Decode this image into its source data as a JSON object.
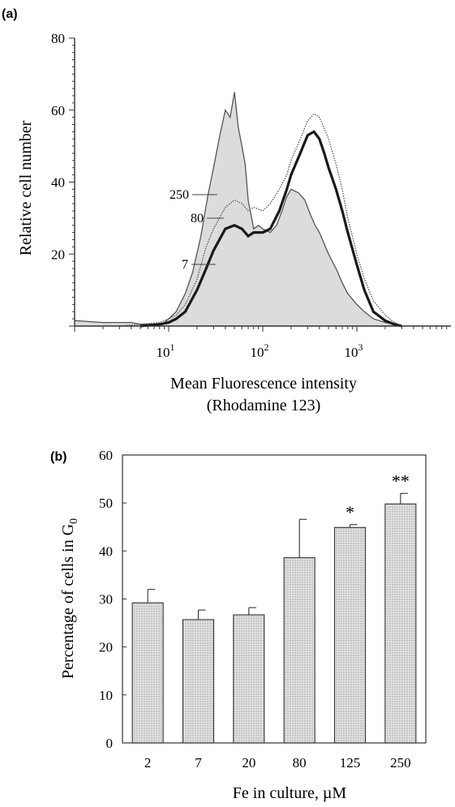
{
  "chart_data": [
    {
      "panel": "(a)",
      "type": "line",
      "xlabel": "Mean Fluorescence intensity",
      "xlabel2": "(Rhodamine 123)",
      "ylabel": "Relative cell number",
      "x_scale": "log",
      "xlim": [
        1,
        10000
      ],
      "ylim": [
        0,
        80
      ],
      "yticks": [
        "20",
        "40",
        "60",
        "80"
      ],
      "xticks": [
        {
          "value": 10,
          "base": "10",
          "exp": "1"
        },
        {
          "value": 100,
          "base": "10",
          "exp": "2"
        },
        {
          "value": 1000,
          "base": "10",
          "exp": "3"
        }
      ],
      "grid": false,
      "series": [
        {
          "name": "7",
          "style": "thin-filled",
          "x": [
            1,
            2,
            3,
            4,
            5,
            6,
            7,
            8,
            9,
            10,
            12,
            15,
            18,
            22,
            26,
            30,
            35,
            40,
            45,
            50,
            55,
            60,
            65,
            70,
            80,
            90,
            100,
            120,
            140,
            160,
            180,
            200,
            240,
            280,
            320,
            360,
            400,
            500,
            600,
            700,
            800,
            1000,
            1200,
            1500,
            2000,
            2500,
            3000
          ],
          "y": [
            1.5,
            1,
            1,
            1,
            0.5,
            0.5,
            0.5,
            0.5,
            1,
            2,
            4,
            9,
            15,
            25,
            36,
            44,
            53,
            60,
            58,
            65,
            55,
            50,
            45,
            35,
            27,
            28,
            27,
            26,
            28,
            32,
            36,
            38,
            37,
            35,
            31,
            28,
            26,
            20,
            16,
            12,
            9,
            6,
            4,
            2,
            1,
            0.5,
            0
          ]
        },
        {
          "name": "80",
          "style": "dotted",
          "x": [
            3,
            5,
            8,
            10,
            12,
            15,
            20,
            25,
            30,
            40,
            50,
            60,
            70,
            80,
            100,
            120,
            150,
            180,
            200,
            250,
            300,
            350,
            400,
            450,
            500,
            600,
            700,
            800,
            1000,
            1200,
            1500,
            2000,
            2500,
            3000
          ],
          "y": [
            0,
            0.5,
            1,
            2,
            3,
            6,
            13,
            22,
            27,
            33,
            35,
            34,
            32,
            33,
            32,
            34,
            38,
            42,
            46,
            52,
            57,
            59,
            58,
            55,
            52,
            45,
            38,
            30,
            20,
            13,
            7,
            3,
            1,
            0
          ]
        },
        {
          "name": "250",
          "style": "thick",
          "x": [
            5,
            8,
            10,
            12,
            15,
            20,
            25,
            30,
            40,
            50,
            60,
            70,
            80,
            100,
            120,
            150,
            180,
            200,
            250,
            300,
            350,
            400,
            450,
            500,
            600,
            700,
            800,
            1000,
            1200,
            1500,
            2000,
            2500,
            3000
          ],
          "y": [
            0,
            0.5,
            1,
            2,
            4,
            10,
            16,
            21,
            27,
            28,
            27,
            25,
            26,
            26,
            27,
            32,
            38,
            42,
            48,
            53,
            54,
            52,
            48,
            44,
            38,
            32,
            26,
            17,
            10,
            4,
            1.5,
            0.5,
            0
          ]
        }
      ],
      "curve_labels": [
        "250",
        "80",
        "7"
      ]
    },
    {
      "panel": "(b)",
      "type": "bar",
      "categories": [
        "2",
        "7",
        "20",
        "80",
        "125",
        "250"
      ],
      "values": [
        29.2,
        25.7,
        26.7,
        38.6,
        44.9,
        49.8
      ],
      "errors": [
        2.8,
        2.0,
        1.5,
        8.0,
        0.6,
        2.2
      ],
      "annotations": [
        "",
        "",
        "",
        "",
        "*",
        "**"
      ],
      "ylim": [
        0,
        60
      ],
      "yticks": [
        "0",
        "10",
        "20",
        "30",
        "40",
        "50",
        "60"
      ],
      "ylabel_main": "Percentage of cells in G",
      "ylabel_sub": "0",
      "xlabel": "Fe in culture, µM",
      "grid": false,
      "bar_fill": "#d4d4d4"
    }
  ]
}
